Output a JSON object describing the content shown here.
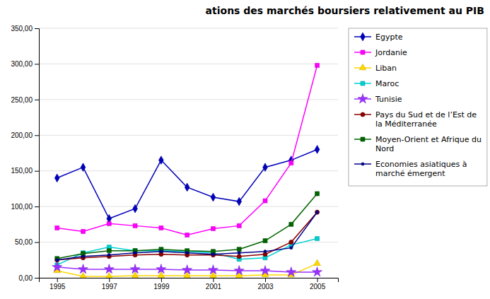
{
  "chart_data": {
    "type": "line",
    "title": "ations des marchés boursiers relativement au PIB",
    "x": [
      1995,
      1996,
      1997,
      1998,
      1999,
      2000,
      2001,
      2002,
      2003,
      2004,
      2005
    ],
    "series": [
      {
        "name": "Egypte",
        "color": "#0000BB",
        "marker": "diamond",
        "values": [
          140,
          155,
          83,
          97,
          165,
          127,
          113,
          107,
          155,
          165,
          180
        ]
      },
      {
        "name": "Jordanie",
        "color": "#FF00FF",
        "marker": "square",
        "values": [
          70,
          65,
          76,
          73,
          70,
          60,
          69,
          73,
          108,
          161,
          298
        ]
      },
      {
        "name": "Liban",
        "color": "#FFD700",
        "marker": "triangle",
        "values": [
          10,
          2,
          2,
          3,
          3,
          3,
          3,
          3,
          4,
          4,
          20
        ]
      },
      {
        "name": "Maroc",
        "color": "#00CED1",
        "marker": "square",
        "values": [
          18,
          35,
          43,
          38,
          38,
          37,
          35,
          26,
          28,
          46,
          55
        ]
      },
      {
        "name": "Tunisie",
        "color": "#9B30FF",
        "marker": "star",
        "values": [
          15,
          12,
          12,
          12,
          12,
          11,
          11,
          10,
          10,
          8,
          8
        ]
      },
      {
        "name": "Pays du Sud et de l’Est de\nla Méditerranée",
        "color": "#8B0000",
        "marker": "circle",
        "values": [
          25,
          28,
          30,
          32,
          33,
          32,
          32,
          30,
          33,
          50,
          92
        ]
      },
      {
        "name": "Moyen-Orient et Afrique du\nNord",
        "color": "#006400",
        "marker": "square",
        "values": [
          27,
          34,
          38,
          38,
          40,
          38,
          37,
          40,
          52,
          75,
          118
        ]
      },
      {
        "name": "Economies asiatiques à\nmarché émergent",
        "color": "#00008B",
        "marker": "point",
        "values": [
          25,
          30,
          32,
          35,
          37,
          35,
          33,
          35,
          37,
          42,
          92
        ]
      }
    ],
    "xlim": [
      1994.3,
      2005.8
    ],
    "xticks": [
      1995,
      1997,
      1999,
      2001,
      2003,
      2005
    ],
    "ylim": [
      0,
      350
    ],
    "yticks": [
      {
        "value": 0,
        "label": "0,00"
      },
      {
        "value": 50,
        "label": "50,00"
      },
      {
        "value": 100,
        "label": "100,00"
      },
      {
        "value": 150,
        "label": "150,00"
      },
      {
        "value": 200,
        "label": "200,00"
      },
      {
        "value": 250,
        "label": "250,00"
      },
      {
        "value": 300,
        "label": "300,00"
      },
      {
        "value": 350,
        "label": "350,00"
      }
    ],
    "grid": "y",
    "legend": "right"
  }
}
